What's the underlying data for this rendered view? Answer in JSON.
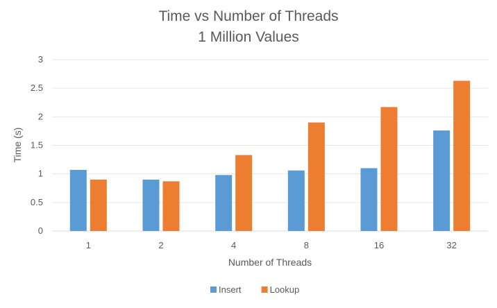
{
  "chart_data": {
    "type": "bar",
    "title": "Time vs Number of Threads",
    "subtitle": "1 Million Values",
    "xlabel": "Number of Threads",
    "ylabel": "Time (s)",
    "categories": [
      "1",
      "2",
      "4",
      "8",
      "16",
      "32"
    ],
    "ylim": [
      0,
      3
    ],
    "yticks": [
      "0",
      "0.5",
      "1",
      "1.5",
      "2",
      "2.5",
      "3"
    ],
    "grid": true,
    "legend_position": "bottom",
    "series": [
      {
        "name": "Insert",
        "color": "#5B9BD5",
        "values": [
          1.07,
          0.9,
          0.98,
          1.06,
          1.1,
          1.76
        ]
      },
      {
        "name": "Lookup",
        "color": "#ED7D31",
        "values": [
          0.9,
          0.87,
          1.33,
          1.9,
          2.17,
          2.63
        ]
      }
    ]
  }
}
